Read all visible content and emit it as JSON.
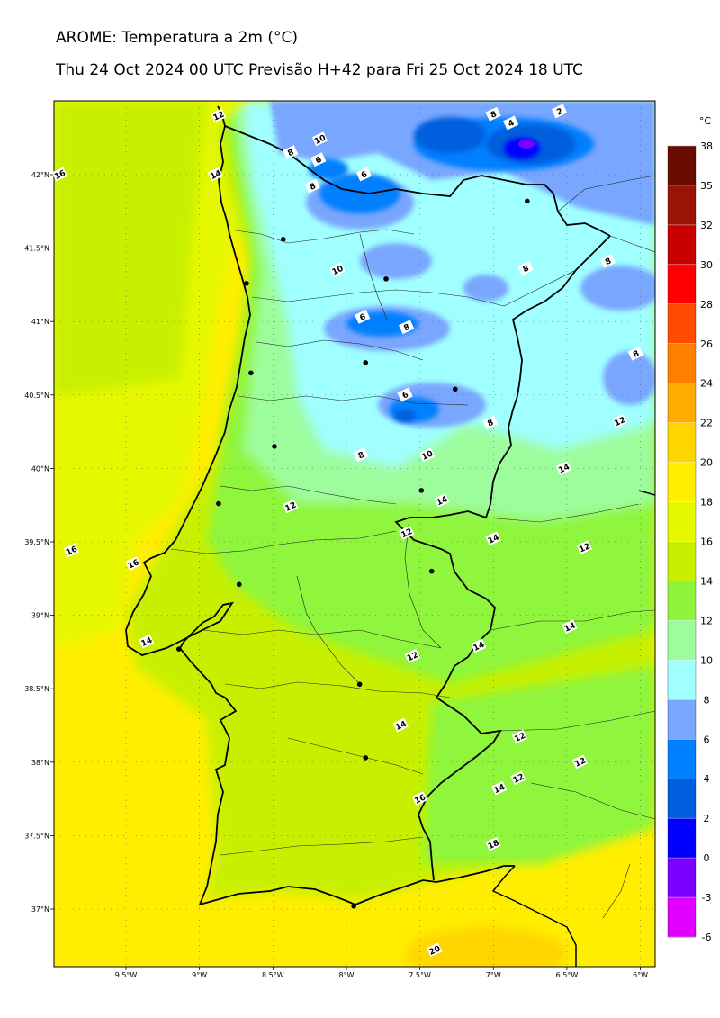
{
  "title": "AROME: Temperatura a 2m (°C)",
  "subtitle": "Thu 24 Oct 2024 00 UTC Previsão H+42 para Fri 25 Oct 2024 18 UTC",
  "colorbar": {
    "unit": "°C",
    "levels": [
      38,
      35,
      32,
      30,
      28,
      26,
      24,
      22,
      20,
      18,
      16,
      14,
      12,
      10,
      8,
      6,
      4,
      2,
      0,
      -3,
      -6
    ],
    "colors": [
      "#6b0c00",
      "#9a1508",
      "#c80000",
      "#ff0000",
      "#ff4a00",
      "#ff8000",
      "#ffab00",
      "#ffd500",
      "#ffee00",
      "#e6f800",
      "#c7f000",
      "#8ff53c",
      "#9dfd9d",
      "#a0ffff",
      "#79a6ff",
      "#0080ff",
      "#005fdc",
      "#0000ff",
      "#7a00ff",
      "#e100ff"
    ]
  },
  "axes": {
    "lat_labels": [
      "42°N",
      "41.5°N",
      "41°N",
      "40.5°N",
      "40°N",
      "39.5°N",
      "39°N",
      "38.5°N",
      "38°N",
      "37.5°N",
      "37°N"
    ],
    "lon_labels": [
      "9.5°W",
      "9°W",
      "8.5°W",
      "8°W",
      "7.5°W",
      "7°W",
      "6.5°W",
      "6°W"
    ]
  },
  "contour_labels": [
    {
      "t": "12",
      "lon": -8.87,
      "lat": 42.4
    },
    {
      "t": "16",
      "lon": -9.95,
      "lat": 42.0
    },
    {
      "t": "14",
      "lon": -8.89,
      "lat": 42.0
    },
    {
      "t": "10",
      "lon": -8.18,
      "lat": 42.24
    },
    {
      "t": "8",
      "lon": -8.38,
      "lat": 42.15
    },
    {
      "t": "6",
      "lon": -8.19,
      "lat": 42.1
    },
    {
      "t": "6",
      "lon": -7.88,
      "lat": 42.0
    },
    {
      "t": "8",
      "lon": -8.23,
      "lat": 41.92
    },
    {
      "t": "8",
      "lon": -7.0,
      "lat": 42.41
    },
    {
      "t": "4",
      "lon": -6.88,
      "lat": 42.35
    },
    {
      "t": "2",
      "lon": -6.55,
      "lat": 42.43
    },
    {
      "t": "10",
      "lon": -8.06,
      "lat": 41.35
    },
    {
      "t": "8",
      "lon": -6.78,
      "lat": 41.36
    },
    {
      "t": "8",
      "lon": -6.22,
      "lat": 41.41
    },
    {
      "t": "6",
      "lon": -7.89,
      "lat": 41.03
    },
    {
      "t": "8",
      "lon": -7.59,
      "lat": 40.96
    },
    {
      "t": "8",
      "lon": -6.03,
      "lat": 40.78
    },
    {
      "t": "6",
      "lon": -7.6,
      "lat": 40.5
    },
    {
      "t": "8",
      "lon": -7.02,
      "lat": 40.31
    },
    {
      "t": "12",
      "lon": -6.14,
      "lat": 40.32
    },
    {
      "t": "8",
      "lon": -7.9,
      "lat": 40.09
    },
    {
      "t": "10",
      "lon": -7.45,
      "lat": 40.09
    },
    {
      "t": "14",
      "lon": -6.52,
      "lat": 40.0
    },
    {
      "t": "14",
      "lon": -7.35,
      "lat": 39.78
    },
    {
      "t": "12",
      "lon": -8.38,
      "lat": 39.74
    },
    {
      "t": "12",
      "lon": -7.59,
      "lat": 39.56
    },
    {
      "t": "14",
      "lon": -7.0,
      "lat": 39.52
    },
    {
      "t": "12",
      "lon": -6.38,
      "lat": 39.46
    },
    {
      "t": "16",
      "lon": -9.87,
      "lat": 39.44
    },
    {
      "t": "16",
      "lon": -9.45,
      "lat": 39.35
    },
    {
      "t": "14",
      "lon": -6.48,
      "lat": 38.92
    },
    {
      "t": "14",
      "lon": -9.36,
      "lat": 38.82
    },
    {
      "t": "14",
      "lon": -7.1,
      "lat": 38.79
    },
    {
      "t": "12",
      "lon": -7.55,
      "lat": 38.72
    },
    {
      "t": "14",
      "lon": -7.63,
      "lat": 38.25
    },
    {
      "t": "12",
      "lon": -6.82,
      "lat": 38.17
    },
    {
      "t": "12",
      "lon": -6.41,
      "lat": 38.0
    },
    {
      "t": "12",
      "lon": -6.83,
      "lat": 37.89
    },
    {
      "t": "14",
      "lon": -6.96,
      "lat": 37.82
    },
    {
      "t": "16",
      "lon": -7.5,
      "lat": 37.75
    },
    {
      "t": "18",
      "lon": -7.0,
      "lat": 37.44
    },
    {
      "t": "20",
      "lon": -7.4,
      "lat": 36.72
    }
  ],
  "cities": [
    {
      "lon": -6.77,
      "lat": 41.82
    },
    {
      "lon": -8.43,
      "lat": 41.56
    },
    {
      "lon": -8.68,
      "lat": 41.26
    },
    {
      "lon": -7.73,
      "lat": 41.29
    },
    {
      "lon": -7.87,
      "lat": 40.72
    },
    {
      "lon": -7.26,
      "lat": 40.54
    },
    {
      "lon": -8.65,
      "lat": 40.65
    },
    {
      "lon": -8.49,
      "lat": 40.15
    },
    {
      "lon": -7.49,
      "lat": 39.85
    },
    {
      "lon": -8.87,
      "lat": 39.76
    },
    {
      "lon": -7.42,
      "lat": 39.3
    },
    {
      "lon": -8.73,
      "lat": 39.21
    },
    {
      "lon": -9.14,
      "lat": 38.77
    },
    {
      "lon": -7.91,
      "lat": 38.53
    },
    {
      "lon": -7.87,
      "lat": 38.03
    },
    {
      "lon": -7.95,
      "lat": 37.02
    }
  ]
}
